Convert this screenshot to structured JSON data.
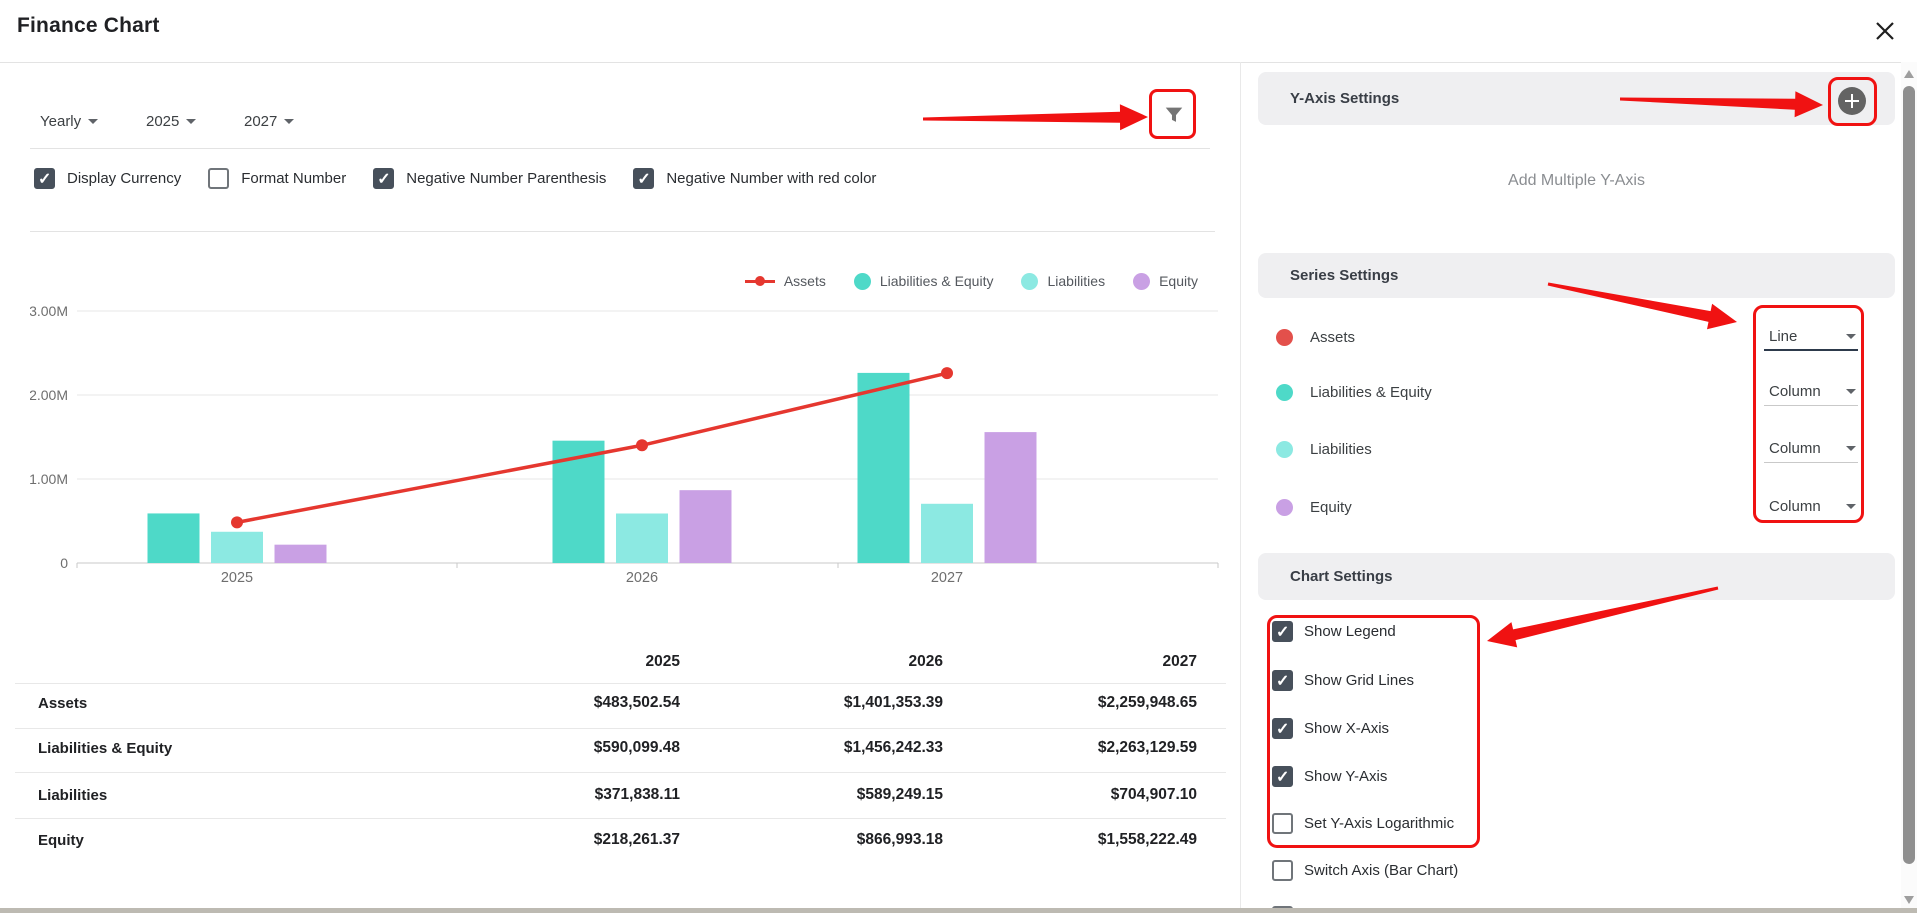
{
  "header": {
    "title": "Finance Chart"
  },
  "toolbar": {
    "period_selects": [
      {
        "value": "Yearly"
      },
      {
        "value": "2025"
      },
      {
        "value": "2027"
      }
    ],
    "display_options": [
      {
        "label": "Display Currency",
        "checked": true
      },
      {
        "label": "Format Number",
        "checked": false
      },
      {
        "label": "Negative Number Parenthesis",
        "checked": true
      },
      {
        "label": "Negative Number with red color",
        "checked": true
      }
    ]
  },
  "chart_data": {
    "type": "bar",
    "categories": [
      "2025",
      "2026",
      "2027"
    ],
    "series": [
      {
        "name": "Assets",
        "type": "line",
        "color": "#e5372f",
        "values": [
          483502.54,
          1401353.39,
          2259948.65
        ]
      },
      {
        "name": "Liabilities & Equity",
        "type": "column",
        "color": "#4ed9c8",
        "values": [
          590099.48,
          1456242.33,
          2263129.59
        ]
      },
      {
        "name": "Liabilities",
        "type": "column",
        "color": "#8ce9e2",
        "values": [
          371838.11,
          589249.15,
          704907.1
        ]
      },
      {
        "name": "Equity",
        "type": "column",
        "color": "#c9a0e4",
        "values": [
          218261.37,
          866993.18,
          1558222.49
        ]
      }
    ],
    "title": "",
    "xlabel": "",
    "ylabel": "",
    "ylim": [
      0,
      3000000
    ],
    "yticks": [
      {
        "value": 0,
        "label": "0"
      },
      {
        "value": 1000000,
        "label": "1.00M"
      },
      {
        "value": 2000000,
        "label": "2.00M"
      },
      {
        "value": 3000000,
        "label": "3.00M"
      }
    ],
    "grid": true,
    "legend_position": "top-right"
  },
  "table": {
    "columns": [
      "2025",
      "2026",
      "2027"
    ],
    "rows": [
      {
        "label": "Assets",
        "values": [
          "$483,502.54",
          "$1,401,353.39",
          "$2,259,948.65"
        ]
      },
      {
        "label": "Liabilities & Equity",
        "values": [
          "$590,099.48",
          "$1,456,242.33",
          "$2,263,129.59"
        ]
      },
      {
        "label": "Liabilities",
        "values": [
          "$371,838.11",
          "$589,249.15",
          "$704,907.10"
        ]
      },
      {
        "label": "Equity",
        "values": [
          "$218,261.37",
          "$866,993.18",
          "$1,558,222.49"
        ]
      }
    ]
  },
  "right_panel": {
    "y_axis": {
      "title": "Y-Axis Settings",
      "empty_text": "Add Multiple Y-Axis"
    },
    "series_settings": {
      "title": "Series Settings",
      "items": [
        {
          "label": "Assets",
          "color": "#e3504b",
          "chart_type": "Line"
        },
        {
          "label": "Liabilities & Equity",
          "color": "#4ed9c8",
          "chart_type": "Column"
        },
        {
          "label": "Liabilities",
          "color": "#8ce9e2",
          "chart_type": "Column"
        },
        {
          "label": "Equity",
          "color": "#c9a0e4",
          "chart_type": "Column"
        }
      ]
    },
    "chart_settings": {
      "title": "Chart Settings",
      "options": [
        {
          "label": "Show Legend",
          "checked": true
        },
        {
          "label": "Show Grid Lines",
          "checked": true
        },
        {
          "label": "Show X-Axis",
          "checked": true
        },
        {
          "label": "Show Y-Axis",
          "checked": true
        },
        {
          "label": "Set Y-Axis Logarithmic",
          "checked": false
        },
        {
          "label": "Switch Axis (Bar Chart)",
          "checked": false
        }
      ]
    }
  },
  "annotations": {
    "color": "#f01212"
  }
}
